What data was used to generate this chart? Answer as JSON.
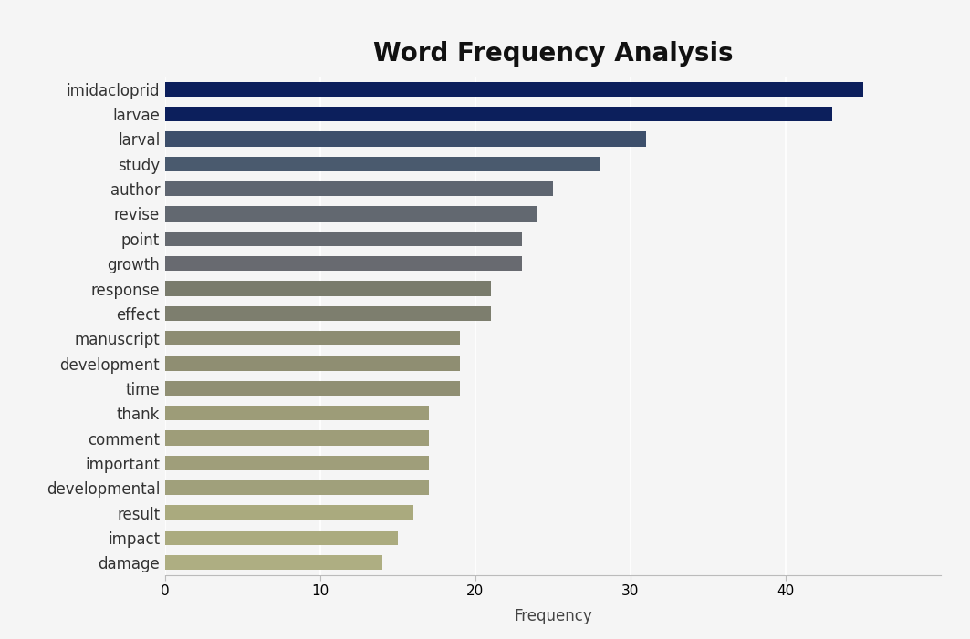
{
  "title": "Word Frequency Analysis",
  "categories": [
    "imidacloprid",
    "larvae",
    "larval",
    "study",
    "author",
    "revise",
    "point",
    "growth",
    "response",
    "effect",
    "manuscript",
    "development",
    "time",
    "thank",
    "comment",
    "important",
    "developmental",
    "result",
    "impact",
    "damage"
  ],
  "values": [
    45,
    43,
    31,
    28,
    25,
    24,
    23,
    23,
    21,
    21,
    19,
    19,
    19,
    17,
    17,
    17,
    17,
    16,
    15,
    14
  ],
  "colors": [
    "#0c1f5c",
    "#0c1f5c",
    "#3d4f6b",
    "#4a5a6e",
    "#5e6570",
    "#626870",
    "#666a70",
    "#686a70",
    "#797b6c",
    "#7d7e6e",
    "#8d8c72",
    "#8f8e72",
    "#908f73",
    "#9d9c78",
    "#9e9d79",
    "#9f9e7a",
    "#a0a07b",
    "#aaaa7e",
    "#abab7f",
    "#aeae82"
  ],
  "xlabel": "Frequency",
  "xlim": [
    0,
    50
  ],
  "xticks": [
    0,
    10,
    20,
    30,
    40
  ],
  "background_color": "#f5f5f5",
  "plot_background": "#f0f0f0",
  "title_fontsize": 20,
  "label_fontsize": 12,
  "tick_fontsize": 11,
  "bar_height": 0.6
}
